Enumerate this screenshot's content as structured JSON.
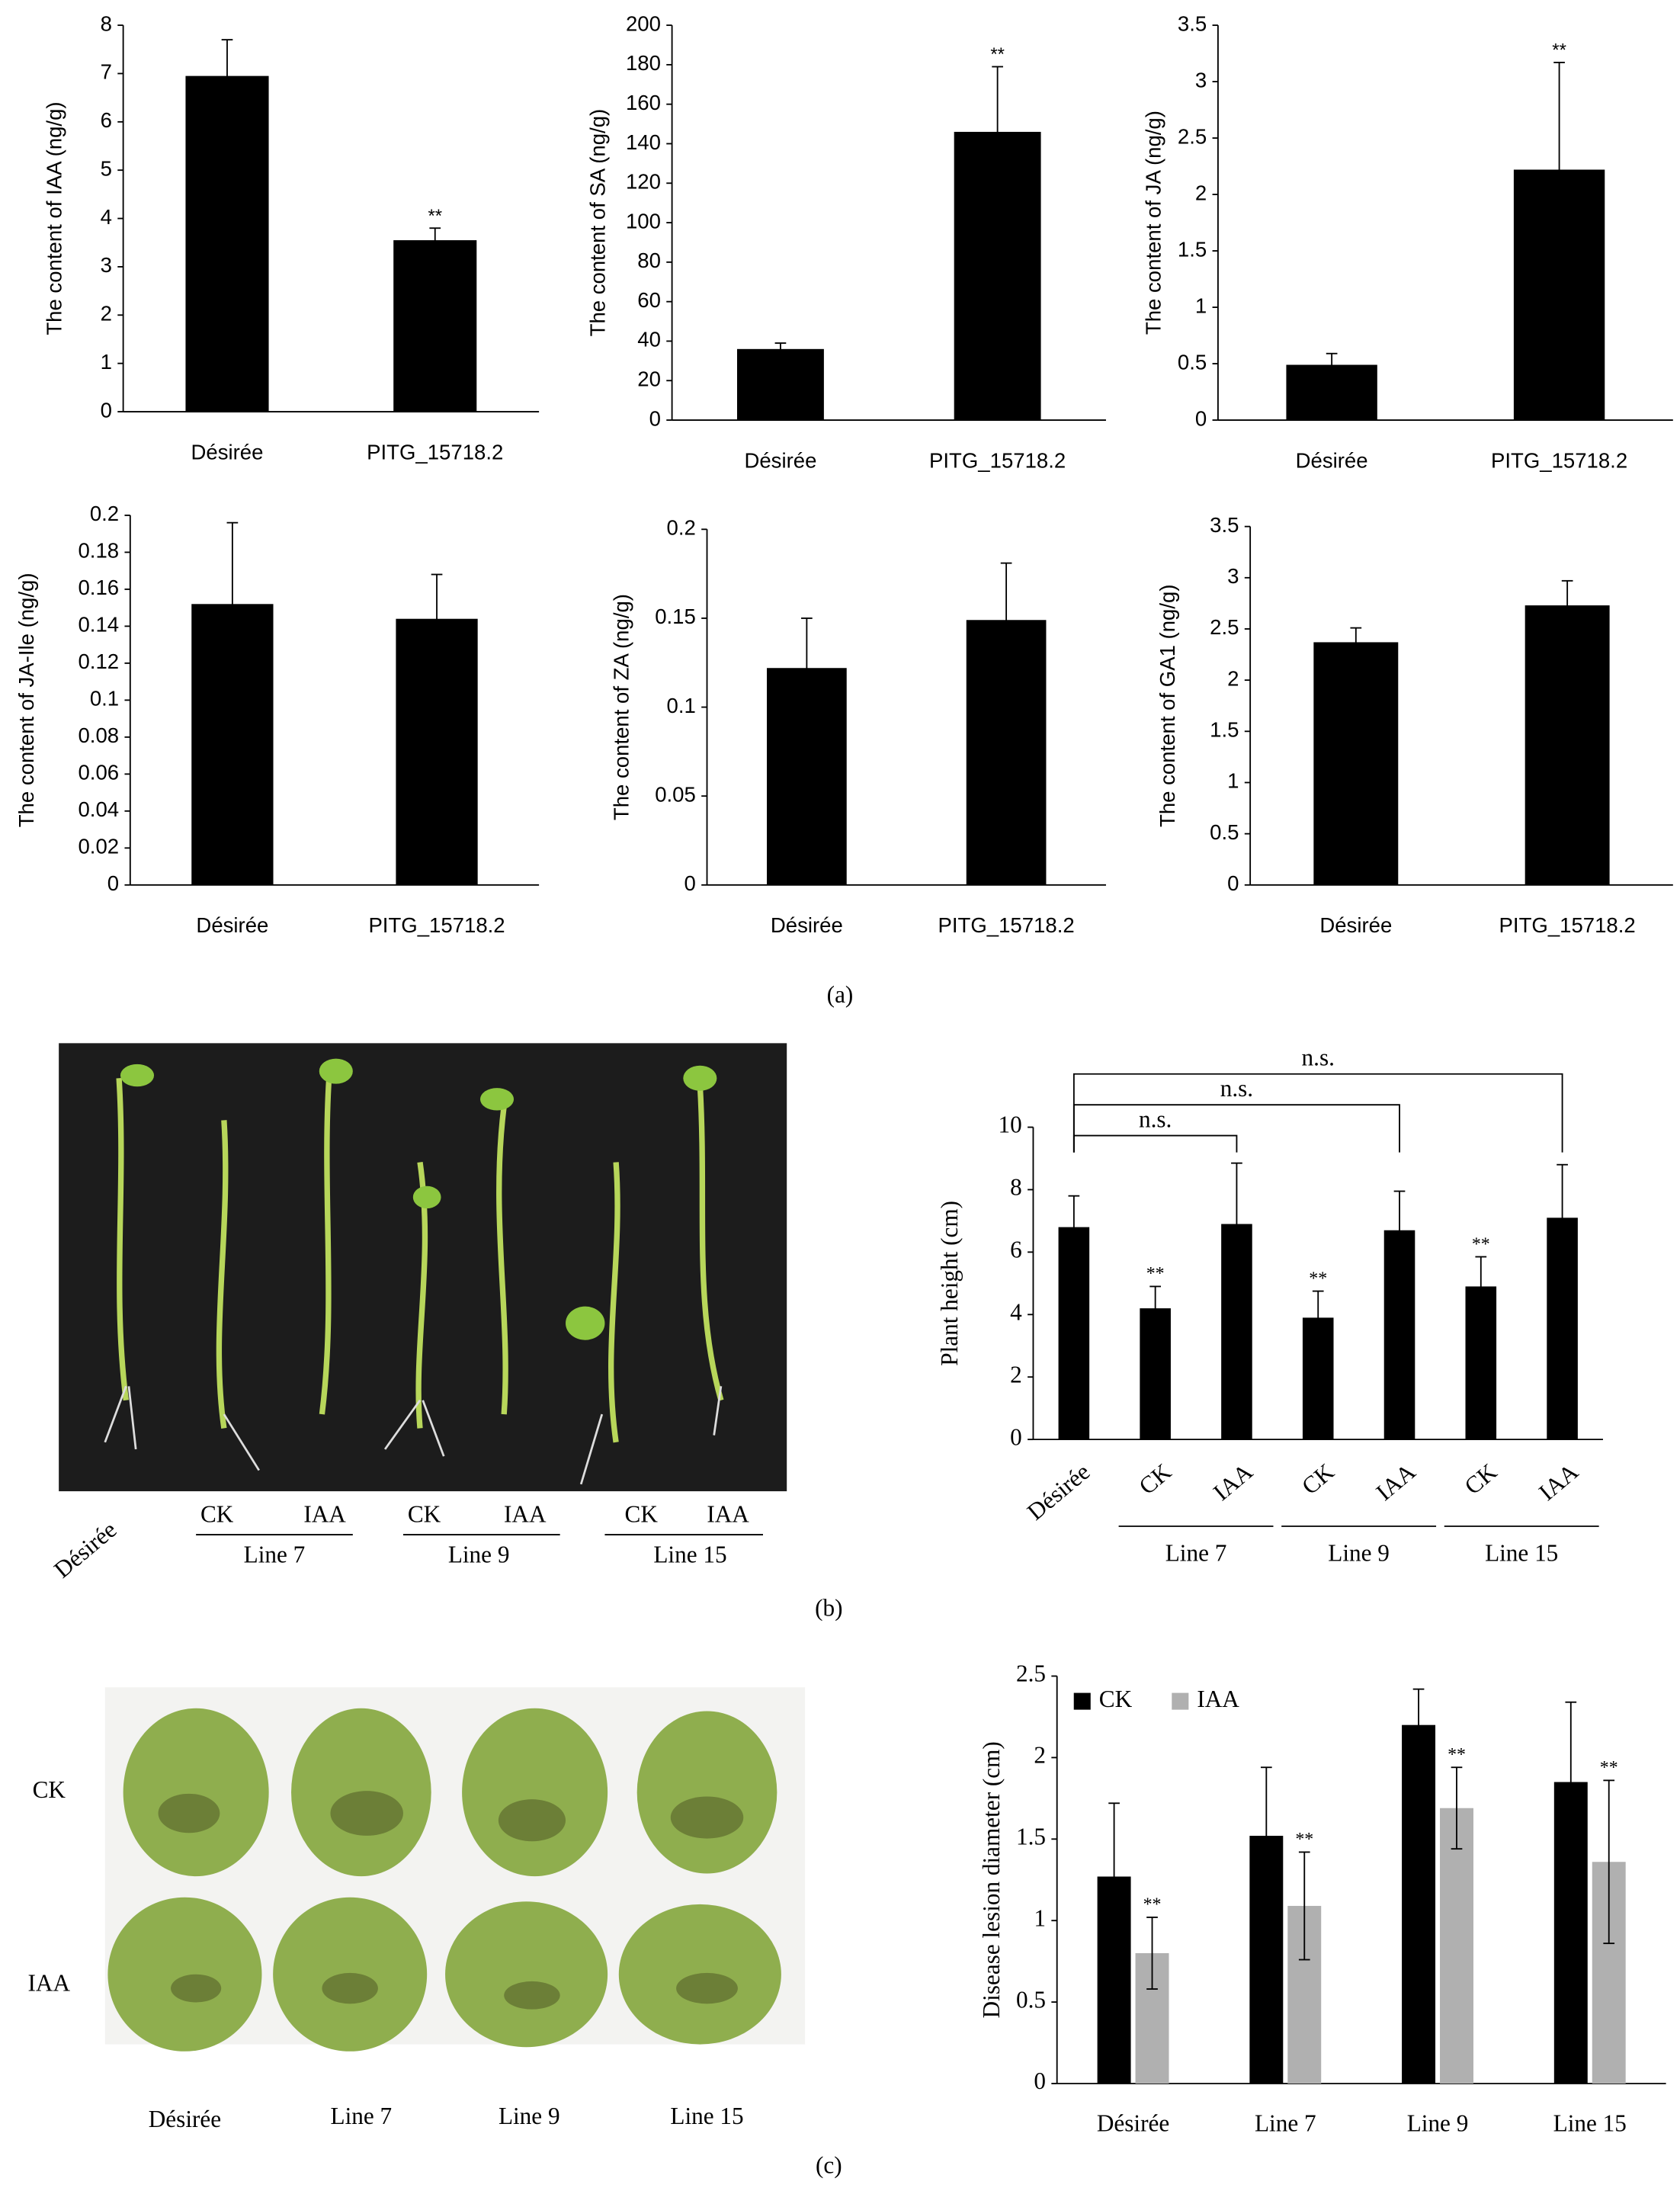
{
  "chart_data": [
    {
      "type": "bar",
      "y_label": "The content of IAA (ng/g)",
      "categories": [
        "Désirée",
        "PITG_15718.2"
      ],
      "values": [
        6.95,
        3.55
      ],
      "errors": [
        0.75,
        0.25
      ],
      "significance": [
        null,
        "**"
      ],
      "color": "#000000",
      "ylim": [
        0,
        8
      ],
      "yticks": [
        0,
        1,
        2,
        3,
        4,
        5,
        6,
        7,
        8
      ]
    },
    {
      "type": "bar",
      "y_label": "The content of SA (ng/g)",
      "categories": [
        "Désirée",
        "PITG_15718.2"
      ],
      "values": [
        36,
        146
      ],
      "errors": [
        3,
        33
      ],
      "significance": [
        null,
        "**"
      ],
      "color": "#000000",
      "ylim": [
        0,
        200
      ],
      "yticks": [
        0,
        20,
        40,
        60,
        80,
        100,
        120,
        140,
        160,
        180,
        200
      ]
    },
    {
      "type": "bar",
      "y_label": "The content of JA (ng/g)",
      "categories": [
        "Désirée",
        "PITG_15718.2"
      ],
      "values": [
        0.49,
        2.22
      ],
      "errors": [
        0.1,
        0.95
      ],
      "significance": [
        null,
        "**"
      ],
      "color": "#000000",
      "ylim": [
        0,
        3.5
      ],
      "yticks": [
        0,
        0.5,
        1,
        1.5,
        2,
        2.5,
        3,
        3.5
      ]
    },
    {
      "type": "bar",
      "y_label": "The content of JA-Ile (ng/g)",
      "categories": [
        "Désirée",
        "PITG_15718.2"
      ],
      "values": [
        0.152,
        0.144
      ],
      "errors": [
        0.044,
        0.024
      ],
      "color": "#000000",
      "ylim": [
        0,
        0.2
      ],
      "yticks": [
        0,
        0.02,
        0.04,
        0.06,
        0.08,
        0.1,
        0.12,
        0.14,
        0.16,
        0.18,
        0.2
      ]
    },
    {
      "type": "bar",
      "y_label": "The content of ZA (ng/g)",
      "categories": [
        "Désirée",
        "PITG_15718.2"
      ],
      "values": [
        0.122,
        0.149
      ],
      "errors": [
        0.028,
        0.032
      ],
      "color": "#000000",
      "ylim": [
        0,
        0.2
      ],
      "yticks": [
        0,
        0.05,
        0.1,
        0.15,
        0.2
      ]
    },
    {
      "type": "bar",
      "y_label": "The content of GA1 (ng/g)",
      "categories": [
        "Désirée",
        "PITG_15718.2"
      ],
      "values": [
        2.37,
        2.73
      ],
      "errors": [
        0.14,
        0.24
      ],
      "color": "#000000",
      "ylim": [
        0,
        3.5
      ],
      "yticks": [
        0,
        0.5,
        1,
        1.5,
        2,
        2.5,
        3,
        3.5
      ]
    },
    {
      "type": "bar",
      "y_label": "Plant height (cm)",
      "categories": [
        "Désirée",
        "CK",
        "IAA",
        "CK",
        "IAA",
        "CK",
        "IAA"
      ],
      "values": [
        6.8,
        4.2,
        6.9,
        3.9,
        6.7,
        4.9,
        7.1
      ],
      "errors": [
        1.0,
        0.7,
        1.95,
        0.85,
        1.25,
        0.95,
        1.7
      ],
      "significance": [
        null,
        "**",
        null,
        "**",
        null,
        "**",
        null
      ],
      "group_labels": [
        "Line 7",
        "Line 9",
        "Line 15"
      ],
      "comparisons": [
        "n.s.",
        "n.s.",
        "n.s."
      ],
      "color": "#000000",
      "ylim": [
        0,
        10
      ],
      "yticks": [
        0,
        2,
        4,
        6,
        8,
        10
      ]
    },
    {
      "type": "grouped_bar",
      "y_label": "Disease lesion diameter (cm)",
      "categories": [
        "Désirée",
        "Line 7",
        "Line 9",
        "Line 15"
      ],
      "series": [
        {
          "name": "CK",
          "color": "#000000",
          "values": [
            1.27,
            1.52,
            2.2,
            1.85
          ],
          "errors": [
            0.45,
            0.42,
            0.22,
            0.49
          ]
        },
        {
          "name": "IAA",
          "color": "#b0b0b0",
          "values": [
            0.8,
            1.09,
            1.69,
            1.36
          ],
          "errors": [
            0.22,
            0.33,
            0.25,
            0.5
          ],
          "significance": [
            "**",
            "**",
            "**",
            "**"
          ]
        }
      ],
      "legend": "top-left",
      "ylim": [
        0,
        2.5
      ],
      "yticks": [
        0,
        0.5,
        1,
        1.5,
        2,
        2.5
      ]
    }
  ],
  "panel_labels": [
    "(a)",
    "(b)",
    "(c)"
  ],
  "photo_b": {
    "first_label": "Désirée",
    "treatments": [
      "CK",
      "IAA",
      "CK",
      "IAA",
      "CK",
      "IAA"
    ],
    "lines": [
      "Line 7",
      "Line 9",
      "Line 15"
    ]
  },
  "photo_c": {
    "rows": [
      "CK",
      "IAA"
    ],
    "columns": [
      "Désirée",
      "Line 7",
      "Line 9",
      "Line 15"
    ]
  }
}
